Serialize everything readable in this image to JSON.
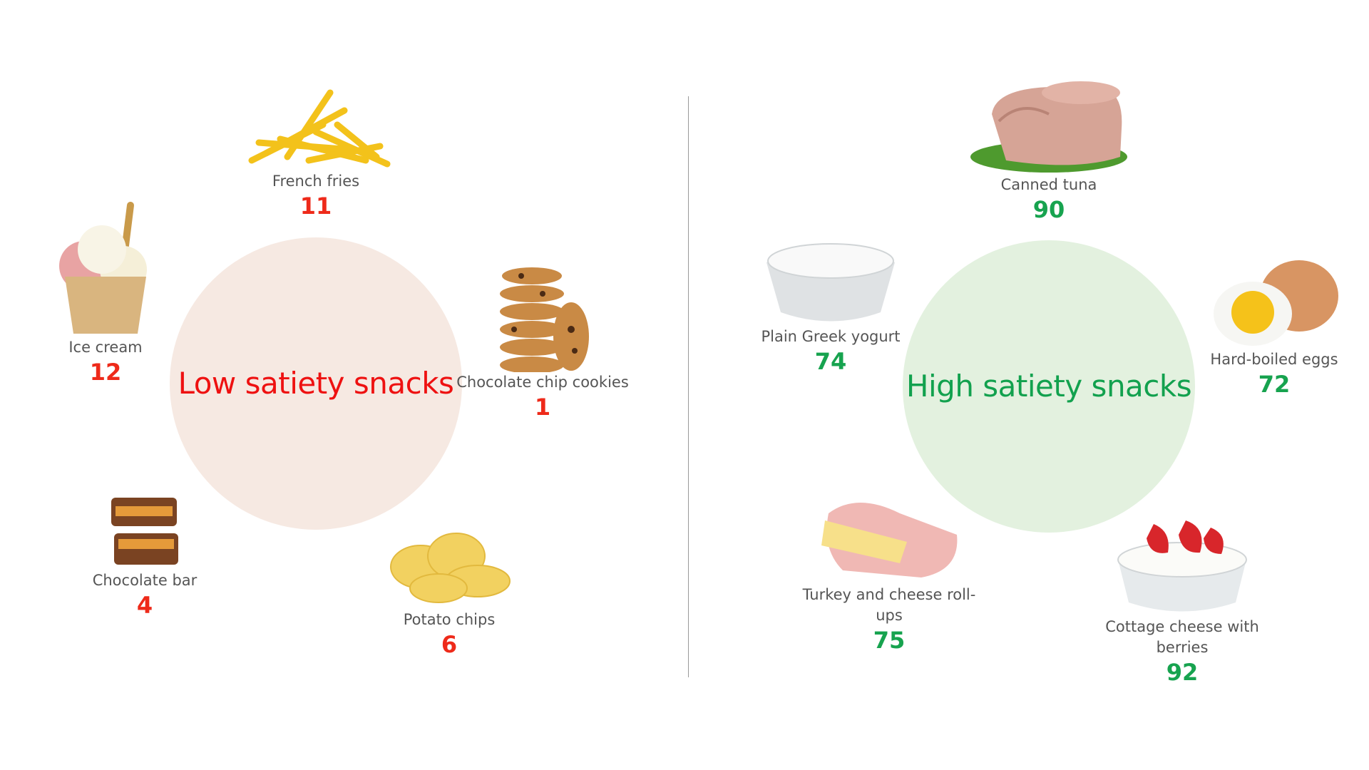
{
  "low": {
    "title": "Low satiety snacks",
    "color": "#ee1111",
    "circle_color": "#f6e9e2",
    "items": [
      {
        "name": "French fries",
        "score": "11"
      },
      {
        "name": "Ice cream",
        "score": "12"
      },
      {
        "name": "Chocolate chip cookies",
        "score": "1"
      },
      {
        "name": "Chocolate bar",
        "score": "4"
      },
      {
        "name": "Potato chips",
        "score": "6"
      }
    ]
  },
  "high": {
    "title": "High satiety snacks",
    "color": "#12a14e",
    "circle_color": "#e3f1df",
    "items": [
      {
        "name": "Canned tuna",
        "score": "90"
      },
      {
        "name": "Plain Greek yogurt",
        "score": "74"
      },
      {
        "name": "Hard-boiled eggs",
        "score": "72"
      },
      {
        "name": "Turkey and cheese roll-ups",
        "score": "75"
      },
      {
        "name": "Cottage cheese with berries",
        "score": "92"
      }
    ]
  }
}
